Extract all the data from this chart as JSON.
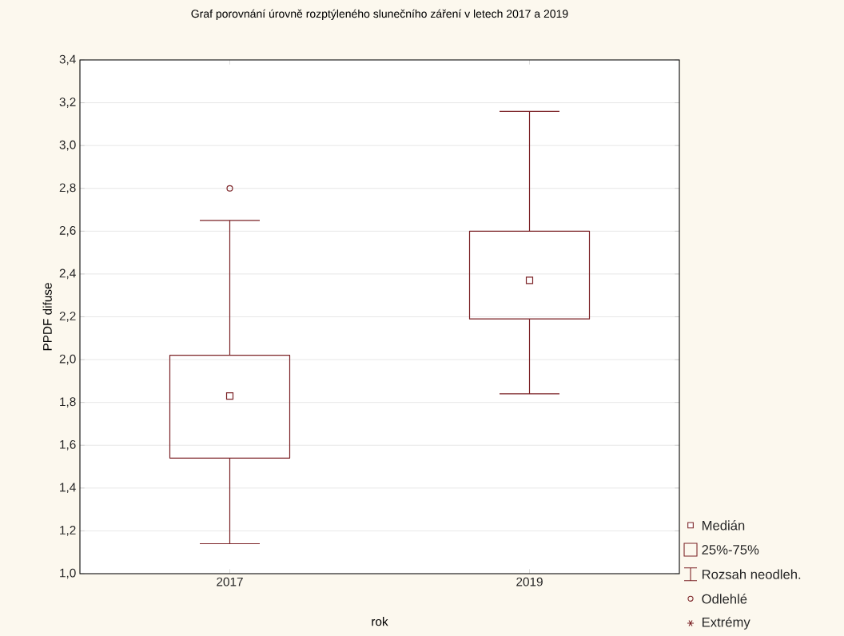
{
  "chart_data": {
    "type": "box",
    "title": "Graf porovnání úrovně rozptýleného slunečního záření v letech 2017 a 2019",
    "xlabel": "rok",
    "ylabel": "PPDF difuse",
    "categories": [
      "2017",
      "2019"
    ],
    "boxes": [
      {
        "low": 1.14,
        "q1": 1.54,
        "median": 1.83,
        "q3": 2.02,
        "high": 2.65,
        "outliers": [
          2.8
        ]
      },
      {
        "low": 1.84,
        "q1": 2.19,
        "median": 2.37,
        "q3": 2.6,
        "high": 3.16
      }
    ],
    "color": "#7b2226",
    "ylim": [
      1.0,
      3.4
    ],
    "yticks": [
      {
        "value": 1.0,
        "label": "1,0"
      },
      {
        "value": 1.2,
        "label": "1,2"
      },
      {
        "value": 1.4,
        "label": "1,4"
      },
      {
        "value": 1.6,
        "label": "1,6"
      },
      {
        "value": 1.8,
        "label": "1,8"
      },
      {
        "value": 2.0,
        "label": "2,0"
      },
      {
        "value": 2.2,
        "label": "2,2"
      },
      {
        "value": 2.4,
        "label": "2,4"
      },
      {
        "value": 2.6,
        "label": "2,6"
      },
      {
        "value": 2.8,
        "label": "2,8"
      },
      {
        "value": 3.0,
        "label": "3,0"
      },
      {
        "value": 3.2,
        "label": "3,2"
      },
      {
        "value": 3.4,
        "label": "3,4"
      }
    ],
    "grid": "y",
    "annotations": [
      "Medián",
      "25%-75%",
      "Rozsah neodleh.",
      "Odlehlé",
      "Extrémy"
    ]
  }
}
